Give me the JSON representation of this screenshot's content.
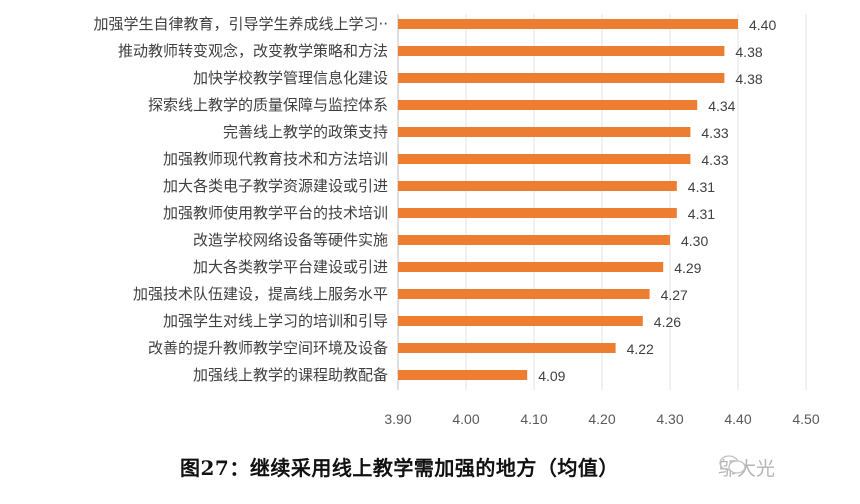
{
  "chart_data": {
    "type": "bar",
    "orientation": "horizontal",
    "title": "图27：继续采用线上教学需加强的地方（均值）",
    "categories": [
      "加强学生自律教育，引导学生养成线上学习··",
      "推动教师转变观念，改变教学策略和方法",
      "加快学校教学管理信息化建设",
      "探索线上教学的质量保障与监控体系",
      "完善线上教学的政策支持",
      "加强教师现代教育技术和方法培训",
      "加大各类电子教学资源建设或引进",
      "加强教师使用教学平台的技术培训",
      "改造学校网络设备等硬件实施",
      "加大各类教学平台建设或引进",
      "加强技术队伍建设，提高线上服务水平",
      "加强学生对线上学习的培训和引导",
      "改善的提升教师教学空间环境及设备",
      "加强线上教学的课程助教配备"
    ],
    "values": [
      4.4,
      4.38,
      4.38,
      4.34,
      4.33,
      4.33,
      4.31,
      4.31,
      4.3,
      4.29,
      4.27,
      4.26,
      4.22,
      4.09
    ],
    "value_labels": [
      "4.40",
      "4.38",
      "4.38",
      "4.34",
      "4.33",
      "4.33",
      "4.31",
      "4.31",
      "4.30",
      "4.29",
      "4.27",
      "4.26",
      "4.22",
      "4.09"
    ],
    "xlim": [
      3.9,
      4.5
    ],
    "xticks": [
      "3.90",
      "4.00",
      "4.10",
      "4.20",
      "4.30",
      "4.40",
      "4.50"
    ],
    "grid": true,
    "bar_color": "#ED7D31"
  },
  "watermark": "邬大光"
}
